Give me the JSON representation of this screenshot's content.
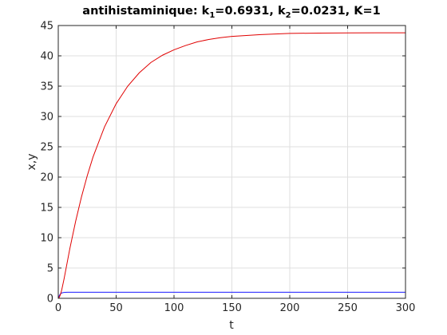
{
  "chart_data": {
    "type": "line",
    "title": {
      "text": "antihistaminique:  k",
      "k1_sub": "1",
      "k1_text": "=0.6931, k",
      "k2_sub": "2",
      "k2_text": "=0.0231, K=1"
    },
    "xlabel": "t",
    "ylabel": "x,y",
    "xlim": [
      0,
      300
    ],
    "ylim": [
      0,
      45
    ],
    "xticks": [
      0,
      50,
      100,
      150,
      200,
      250,
      300
    ],
    "yticks": [
      0,
      5,
      10,
      15,
      20,
      25,
      30,
      35,
      40,
      45
    ],
    "grid": true,
    "series": [
      {
        "color": "#1a1aff",
        "x": [
          0,
          1,
          2,
          3,
          4,
          5,
          6,
          8,
          10,
          15,
          20,
          30,
          50,
          100,
          150,
          200,
          250,
          300
        ],
        "y": [
          0,
          0.5,
          0.75,
          0.88,
          0.94,
          0.97,
          0.98,
          1.0,
          1.0,
          1.0,
          1.0,
          1.0,
          1.0,
          1.0,
          1.0,
          1.0,
          1.0,
          1.0
        ]
      },
      {
        "color": "#e00000",
        "x": [
          0,
          1,
          2,
          3,
          5,
          10,
          15,
          20,
          25,
          30,
          40,
          50,
          60,
          70,
          80,
          90,
          100,
          110,
          120,
          130,
          140,
          150,
          175,
          200,
          225,
          250,
          275,
          300
        ],
        "y": [
          0,
          0.2,
          0.7,
          1.4,
          3.2,
          8.2,
          12.7,
          16.7,
          20.2,
          23.3,
          28.3,
          32.1,
          35.0,
          37.2,
          38.9,
          40.1,
          41.0,
          41.7,
          42.3,
          42.7,
          43.0,
          43.2,
          43.5,
          43.7,
          43.75,
          43.78,
          43.8,
          43.8
        ]
      }
    ]
  }
}
